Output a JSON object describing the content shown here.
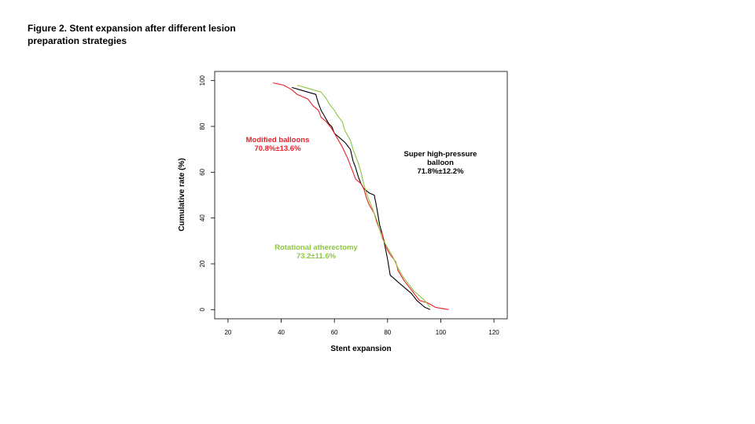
{
  "figure": {
    "title_line1": "Figure 2. Stent expansion after different lesion",
    "title_line2": "preparation strategies"
  },
  "chart_data": {
    "type": "line",
    "title": "Figure 2. Stent expansion after different lesion preparation strategies",
    "xlabel": "Stent expansion",
    "ylabel": "Cumulative rate (%)",
    "xlim": [
      15,
      125
    ],
    "ylim": [
      -4,
      104
    ],
    "xticks": [
      20,
      40,
      60,
      80,
      100,
      120
    ],
    "yticks": [
      0,
      20,
      40,
      60,
      80,
      100
    ],
    "grid": false,
    "legend": "none",
    "series": [
      {
        "color": "#000000",
        "x": [
          44,
          47,
          50,
          53,
          54,
          55,
          56,
          57,
          58,
          59,
          60,
          62,
          64,
          66,
          67,
          68,
          69,
          70,
          71,
          73,
          75,
          76,
          77,
          78,
          79,
          80,
          81,
          83,
          85,
          87,
          89,
          91,
          93,
          94,
          96
        ],
        "y": [
          97,
          96,
          95,
          94,
          90,
          87,
          85,
          83,
          81,
          80,
          77,
          75,
          73,
          70,
          65,
          62,
          58,
          55,
          53,
          51,
          50,
          44,
          37,
          33,
          28,
          22,
          15,
          13,
          11,
          9,
          7,
          4,
          2,
          1,
          0
        ]
      },
      {
        "color": "#e8202a",
        "x": [
          37,
          41,
          44,
          46,
          48,
          50,
          52,
          54,
          55,
          57,
          59,
          61,
          63,
          65,
          66,
          67,
          68,
          70,
          71,
          72,
          73,
          74,
          75,
          76,
          77,
          78,
          79,
          80,
          81,
          83,
          84,
          86,
          88,
          90,
          92,
          95,
          98,
          103
        ],
        "y": [
          99,
          98,
          96,
          94,
          93,
          92,
          89,
          87,
          84,
          82,
          79,
          75,
          71,
          66,
          63,
          60,
          57,
          55,
          53,
          49,
          46,
          44,
          42,
          38,
          35,
          33,
          29,
          26,
          24,
          21,
          17,
          13,
          10,
          7,
          4,
          3,
          1,
          0
        ]
      },
      {
        "color": "#8dc63f",
        "x": [
          46,
          49,
          52,
          55,
          57,
          58,
          60,
          61,
          63,
          64,
          66,
          67,
          68,
          69,
          70,
          71,
          72,
          73,
          74,
          75,
          76,
          77,
          78,
          80,
          82,
          84,
          86,
          88,
          90,
          92,
          94,
          96
        ],
        "y": [
          98,
          97,
          96,
          95,
          92,
          90,
          87,
          85,
          82,
          78,
          74,
          70,
          67,
          64,
          60,
          55,
          51,
          48,
          45,
          42,
          39,
          35,
          31,
          27,
          23,
          18,
          14,
          11,
          8,
          6,
          4,
          1
        ]
      }
    ],
    "annotations": [
      {
        "lines": [
          "Modified balloons",
          "70.8%±13.6%"
        ],
        "color": "#e8202a"
      },
      {
        "lines": [
          "Super high-pressure",
          "balloon",
          "71.8%±12.2%"
        ],
        "color": "#000000"
      },
      {
        "lines": [
          "Rotational atherectomy",
          "73.2±11.6%"
        ],
        "color": "#8dc63f"
      }
    ]
  }
}
